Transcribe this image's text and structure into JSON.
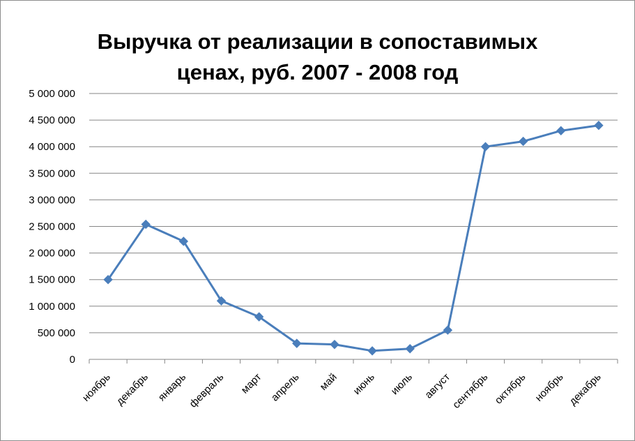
{
  "chart_data": {
    "type": "line",
    "title_lines": [
      "Выручка от реализации в сопоставимых",
      "ценах, руб. 2007 - 2008 год"
    ],
    "categories": [
      "ноябрь",
      "декабрь",
      "январь",
      "февраль",
      "март",
      "апрель",
      "май",
      "июнь",
      "июль",
      "август",
      "сентябрь",
      "октябрь",
      "ноябрь",
      "декабрь"
    ],
    "series": [
      {
        "values": [
          1500000,
          2540000,
          2220000,
          1100000,
          800000,
          300000,
          280000,
          160000,
          200000,
          550000,
          4000000,
          4100000,
          4300000,
          4400000
        ],
        "color": "#4a7ebb"
      }
    ],
    "ylim": [
      0,
      5000000
    ],
    "y_ticks": [
      0,
      500000,
      1000000,
      1500000,
      2000000,
      2500000,
      3000000,
      3500000,
      4000000,
      4500000,
      5000000
    ],
    "y_tick_labels": [
      "0",
      "500 000",
      "1 000 000",
      "1 500 000",
      "2 000 000",
      "2 500 000",
      "3 000 000",
      "3 500 000",
      "4 000 000",
      "4 500 000",
      "5 000 000"
    ],
    "grid": true,
    "legend": "none",
    "marker": "diamond"
  }
}
